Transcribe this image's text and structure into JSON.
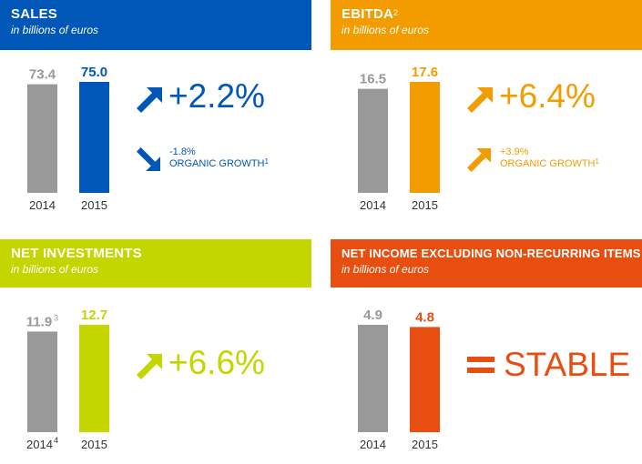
{
  "colors": {
    "grey": "#999999",
    "sales": "#0057b8",
    "ebitda": "#f39c00",
    "investments": "#c4d600",
    "net_income": "#e84e10"
  },
  "panels": {
    "sales": {
      "title": "SALES",
      "title_sup": "",
      "subtitle": "in billions of euros",
      "big_change": "+2.2%",
      "big_direction": "up",
      "organic_value": "-1.8%",
      "organic_label": "ORGANIC GROWTH",
      "organic_sup": "1",
      "organic_direction": "down"
    },
    "ebitda": {
      "title": "EBITDA",
      "title_sup": "2",
      "subtitle": "in billions of euros",
      "big_change": "+6.4%",
      "big_direction": "up",
      "organic_value": "+3.9%",
      "organic_label": "ORGANIC GROWTH",
      "organic_sup": "1",
      "organic_direction": "up"
    },
    "investments": {
      "title": "NET INVESTMENTS",
      "title_sup": "",
      "subtitle": "in billions of euros",
      "big_change": "+6.6%",
      "big_direction": "up"
    },
    "net_income": {
      "title": "NET INCOME EXCLUDING NON-RECURRING ITEMS",
      "title_sup": "",
      "subtitle": "in billions of euros",
      "status": "STABLE",
      "status_icon": "equals-icon"
    }
  },
  "chart_data": [
    {
      "type": "bar",
      "categories": [
        "2014",
        "2015"
      ],
      "values": [
        73.4,
        75.0
      ],
      "value_labels": [
        "73.4",
        "75.0"
      ],
      "label_sups": [
        "",
        ""
      ],
      "category_sups": [
        "",
        ""
      ],
      "ylim": [
        0,
        75.0
      ],
      "title": "SALES"
    },
    {
      "type": "bar",
      "categories": [
        "2014",
        "2015"
      ],
      "values": [
        16.5,
        17.6
      ],
      "value_labels": [
        "16.5",
        "17.6"
      ],
      "label_sups": [
        "",
        ""
      ],
      "category_sups": [
        "",
        ""
      ],
      "ylim": [
        0,
        17.6
      ],
      "title": "EBITDA"
    },
    {
      "type": "bar",
      "categories": [
        "2014",
        "2015"
      ],
      "values": [
        11.9,
        12.7
      ],
      "value_labels": [
        "11.9",
        "12.7"
      ],
      "label_sups": [
        "3",
        ""
      ],
      "category_sups": [
        "4",
        ""
      ],
      "ylim": [
        0,
        12.7
      ],
      "title": "NET INVESTMENTS"
    },
    {
      "type": "bar",
      "categories": [
        "2014",
        "2015"
      ],
      "values": [
        4.9,
        4.8
      ],
      "value_labels": [
        "4.9",
        "4.8"
      ],
      "label_sups": [
        "",
        ""
      ],
      "category_sups": [
        "",
        ""
      ],
      "ylim": [
        0,
        4.9
      ],
      "title": "NET INCOME EXCLUDING NON-RECURRING ITEMS"
    }
  ]
}
